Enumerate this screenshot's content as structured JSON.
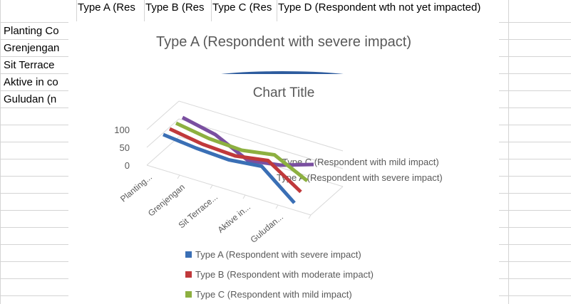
{
  "sheet": {
    "column_headers": [
      "Type A (Res",
      "Type B (Res",
      "Type C (Res",
      "Type D (Respondent wth not yet impacted)"
    ],
    "row_labels": [
      "Planting Co",
      "Grenjengan",
      "Sit Terrace",
      "Aktive in co",
      "Guludan (n"
    ]
  },
  "chart_behind": {
    "title": "Type A (Respondent with severe impact)",
    "pie_color": "#2e5c9e"
  },
  "chart_data": {
    "type": "line",
    "subtype": "3d-line",
    "title": "Chart Title",
    "categories": [
      "Planting...",
      "Grenjengan",
      "Sit Terrace...",
      "Aktive in...",
      "Guludan..."
    ],
    "y_ticks": [
      "0",
      "50",
      "100"
    ],
    "ylim": [
      0,
      100
    ],
    "depth_labels": [
      "Type C (Respondent with mild impact)",
      "Type A (Respondent with severe impact)"
    ],
    "series": [
      {
        "name": "Type A (Respondent with severe impact)",
        "color": "#3a6fb5",
        "values": [
          100,
          90,
          85,
          95,
          20
        ]
      },
      {
        "name": "Type B (Respondent with moderate impact)",
        "color": "#c0393b",
        "values": [
          100,
          85,
          80,
          95,
          35
        ]
      },
      {
        "name": "Type C (Respondent with mild impact)",
        "color": "#8db040",
        "values": [
          100,
          85,
          80,
          95,
          50
        ]
      },
      {
        "name": "Type D (Respondent wth not yet impacted)",
        "color": "#7a4fa0",
        "values": [
          100,
          80,
          35,
          50,
          80
        ]
      }
    ],
    "legend_visible": [
      "Type A (Respondent with severe impact)",
      "Type B (Respondent with moderate impact)",
      "Type C (Respondent with mild impact)"
    ],
    "legend_position": "bottom"
  }
}
